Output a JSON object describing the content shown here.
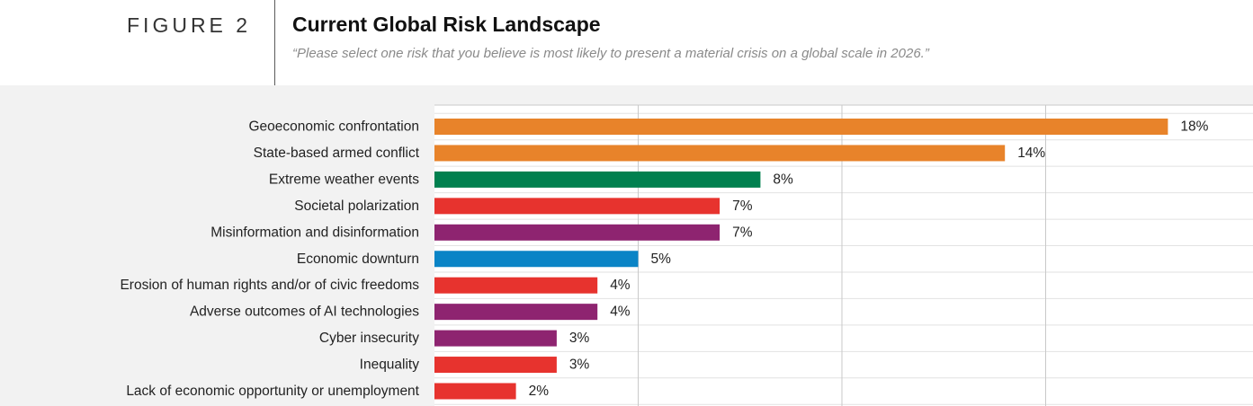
{
  "figure_label": "FIGURE 2",
  "title": "Current Global Risk Landscape",
  "subtitle": "“Please select one risk that you believe is most likely to present a material crisis on a global scale in 2026.”",
  "colors": {
    "orange": "#e8832a",
    "green": "#00804f",
    "red": "#e7332e",
    "purple": "#8e2470",
    "blue": "#0a84c6",
    "plot_background": "#f2f2f2",
    "grid": "#c9c9c9"
  },
  "chart_data": {
    "type": "bar",
    "orientation": "horizontal",
    "categories": [
      "Geoeconomic confrontation",
      "State-based armed conflict",
      "Extreme weather events",
      "Societal polarization",
      "Misinformation and disinformation",
      "Economic downturn",
      "Erosion of human rights and/or of civic freedoms",
      "Adverse outcomes of AI technologies",
      "Cyber insecurity",
      "Inequality",
      "Lack of economic opportunity or unemployment"
    ],
    "values": [
      18,
      14,
      8,
      7,
      7,
      5,
      4,
      4,
      3,
      3,
      2
    ],
    "value_labels": [
      "18%",
      "14%",
      "8%",
      "7%",
      "7%",
      "5%",
      "4%",
      "4%",
      "3%",
      "3%",
      "2%"
    ],
    "bar_colors": [
      "#e8832a",
      "#e8832a",
      "#00804f",
      "#e7332e",
      "#8e2470",
      "#0a84c6",
      "#e7332e",
      "#8e2470",
      "#8e2470",
      "#e7332e",
      "#e7332e"
    ],
    "xlim": [
      0,
      20
    ],
    "grid": true,
    "title": "Current Global Risk Landscape"
  }
}
